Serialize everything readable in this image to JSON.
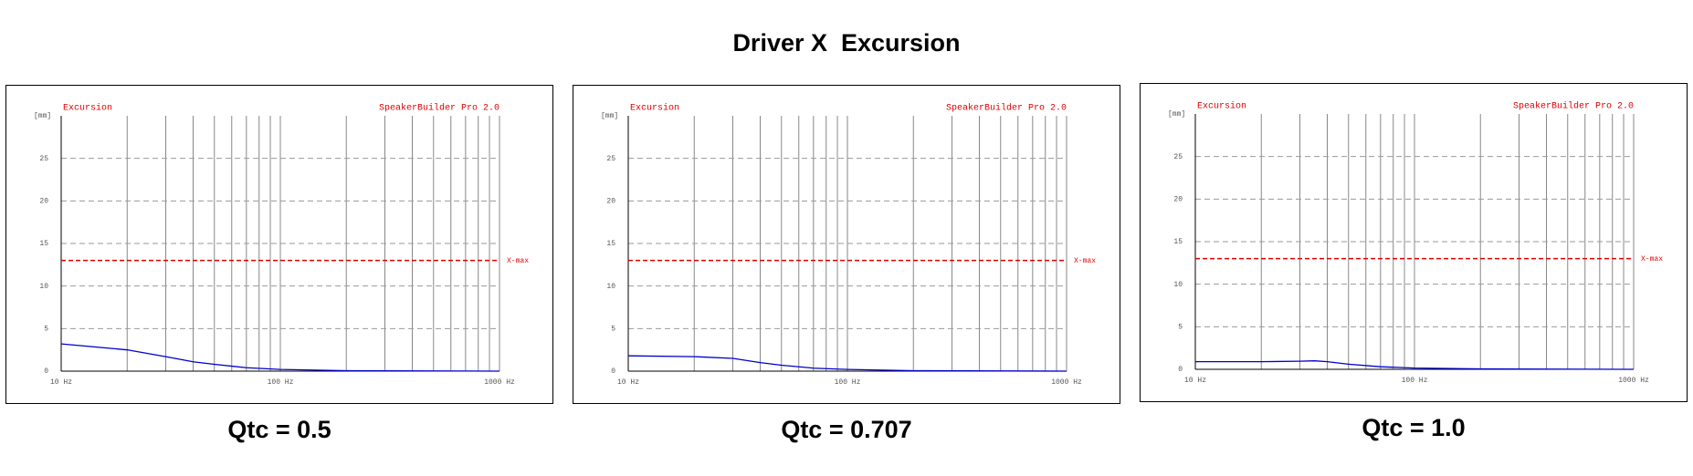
{
  "title": "Driver X  Excursion",
  "chart_data": [
    {
      "type": "line",
      "title": "Excursion",
      "subtitle": "SpeakerBuilder Pro 2.0",
      "y_label": "[mm]",
      "caption": "Qtc = 0.5",
      "x": [
        10,
        20,
        30,
        40,
        50,
        70,
        100,
        200,
        1000
      ],
      "values": [
        3.2,
        2.5,
        1.7,
        1.1,
        0.8,
        0.4,
        0.2,
        0.05,
        0
      ],
      "color": "#0000cc",
      "log_x": true,
      "xlim": [
        10,
        1000
      ],
      "xticks": [
        {
          "value": 10,
          "label": "10 Hz"
        },
        {
          "value": 100,
          "label": "100 Hz"
        },
        {
          "value": 1000,
          "label": "1000 Hz"
        }
      ],
      "xgrid": [
        20,
        30,
        40,
        50,
        60,
        70,
        80,
        90,
        200,
        300,
        400,
        500,
        600,
        700,
        800,
        900
      ],
      "ylim": [
        0,
        30
      ],
      "yticks": [
        0,
        5,
        10,
        15,
        20,
        25
      ],
      "grid": true,
      "hlines": [
        {
          "value": 13,
          "label": "X-max",
          "color": "#e00000"
        }
      ]
    },
    {
      "type": "line",
      "title": "Excursion",
      "subtitle": "SpeakerBuilder Pro 2.0",
      "y_label": "[mm]",
      "caption": "Qtc = 0.707",
      "x": [
        10,
        20,
        30,
        40,
        50,
        70,
        100,
        200,
        1000
      ],
      "values": [
        1.8,
        1.7,
        1.5,
        1.0,
        0.7,
        0.35,
        0.2,
        0.05,
        0
      ],
      "color": "#0000cc",
      "log_x": true,
      "xlim": [
        10,
        1000
      ],
      "xticks": [
        {
          "value": 10,
          "label": "10 Hz"
        },
        {
          "value": 100,
          "label": "100 Hz"
        },
        {
          "value": 1000,
          "label": "1000 Hz"
        }
      ],
      "xgrid": [
        20,
        30,
        40,
        50,
        60,
        70,
        80,
        90,
        200,
        300,
        400,
        500,
        600,
        700,
        800,
        900
      ],
      "ylim": [
        0,
        30
      ],
      "yticks": [
        0,
        5,
        10,
        15,
        20,
        25
      ],
      "grid": true,
      "hlines": [
        {
          "value": 13,
          "label": "X-max",
          "color": "#e00000"
        }
      ]
    },
    {
      "type": "line",
      "title": "Excursion",
      "subtitle": "SpeakerBuilder Pro 2.0",
      "y_label": "[mm]",
      "caption": "Qtc = 1.0",
      "x": [
        10,
        20,
        30,
        35,
        40,
        50,
        70,
        100,
        200,
        1000
      ],
      "values": [
        0.9,
        0.9,
        0.95,
        1.0,
        0.9,
        0.6,
        0.3,
        0.15,
        0.05,
        0
      ],
      "color": "#0000cc",
      "log_x": true,
      "xlim": [
        10,
        1000
      ],
      "xticks": [
        {
          "value": 10,
          "label": "10 Hz"
        },
        {
          "value": 100,
          "label": "100 Hz"
        },
        {
          "value": 1000,
          "label": "1000 Hz"
        }
      ],
      "xgrid": [
        20,
        30,
        40,
        50,
        60,
        70,
        80,
        90,
        200,
        300,
        400,
        500,
        600,
        700,
        800,
        900
      ],
      "ylim": [
        0,
        30
      ],
      "yticks": [
        0,
        5,
        10,
        15,
        20,
        25
      ],
      "grid": true,
      "hlines": [
        {
          "value": 13,
          "label": "X-max",
          "color": "#e00000"
        }
      ]
    }
  ]
}
